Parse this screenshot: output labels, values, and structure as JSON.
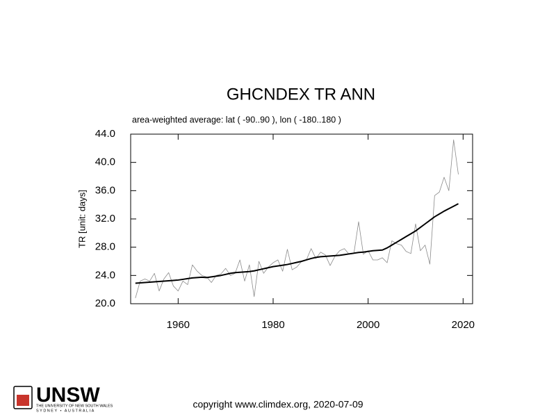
{
  "chart_data": {
    "type": "line",
    "title": "GHCNDEX TR ANN",
    "subtitle": "area-weighted average: lat ( -90..90 ), lon ( -180..180 )",
    "y_label": "TR [unit: days]",
    "x": [
      1951,
      1952,
      1953,
      1954,
      1955,
      1956,
      1957,
      1958,
      1959,
      1960,
      1961,
      1962,
      1963,
      1964,
      1965,
      1966,
      1967,
      1968,
      1969,
      1970,
      1971,
      1972,
      1973,
      1974,
      1975,
      1976,
      1977,
      1978,
      1979,
      1980,
      1981,
      1982,
      1983,
      1984,
      1985,
      1986,
      1987,
      1988,
      1989,
      1990,
      1991,
      1992,
      1993,
      1994,
      1995,
      1996,
      1997,
      1998,
      1999,
      2000,
      2001,
      2002,
      2003,
      2004,
      2005,
      2006,
      2007,
      2008,
      2009,
      2010,
      2011,
      2012,
      2013,
      2014,
      2015,
      2016,
      2017,
      2018,
      2019
    ],
    "series": [
      {
        "color": "#8a8a8a",
        "width": 0.8,
        "values": [
          20.8,
          23.2,
          23.5,
          23.2,
          24.3,
          21.8,
          23.5,
          24.4,
          22.5,
          21.8,
          23.2,
          22.7,
          25.5,
          24.6,
          24.0,
          23.8,
          23.0,
          24.0,
          24.2,
          25.0,
          24.0,
          24.3,
          26.2,
          23.2,
          25.5,
          21.0,
          26.0,
          24.3,
          25.2,
          25.8,
          26.2,
          24.6,
          27.7,
          24.8,
          25.2,
          26.0,
          26.2,
          27.8,
          26.4,
          27.3,
          26.9,
          25.4,
          26.7,
          27.5,
          27.8,
          27.0,
          27.1,
          31.6,
          27.0,
          27.5,
          26.2,
          26.2,
          26.5,
          25.8,
          28.9,
          28.5,
          28.3,
          27.4,
          27.1,
          31.3,
          27.5,
          28.3,
          25.6,
          35.3,
          35.8,
          37.9,
          36.0,
          43.2,
          38.3
        ]
      },
      {
        "color": "#000000",
        "width": 2,
        "values": [
          22.9,
          22.95,
          23.0,
          23.05,
          23.1,
          23.15,
          23.2,
          23.25,
          23.3,
          23.35,
          23.45,
          23.55,
          23.65,
          23.7,
          23.75,
          23.7,
          23.8,
          23.9,
          24.0,
          24.15,
          24.3,
          24.4,
          24.45,
          24.5,
          24.55,
          24.65,
          24.8,
          24.95,
          25.1,
          25.25,
          25.35,
          25.45,
          25.55,
          25.7,
          25.85,
          26.0,
          26.2,
          26.4,
          26.55,
          26.65,
          26.7,
          26.75,
          26.8,
          26.85,
          26.95,
          27.05,
          27.15,
          27.25,
          27.3,
          27.4,
          27.5,
          27.55,
          27.6,
          27.9,
          28.3,
          28.7,
          29.1,
          29.5,
          29.9,
          30.3,
          30.8,
          31.3,
          31.8,
          32.3,
          32.7,
          33.1,
          33.45,
          33.8,
          34.15
        ]
      }
    ],
    "xlim": [
      1950,
      2022
    ],
    "xticks": [
      1960,
      1980,
      2000,
      2020
    ],
    "ylim": [
      20,
      44
    ],
    "yticks": [
      {
        "value": 20,
        "label": "20.0"
      },
      {
        "value": 24,
        "label": "24.0"
      },
      {
        "value": 28,
        "label": "28.0"
      },
      {
        "value": 32,
        "label": "32.0"
      },
      {
        "value": 36,
        "label": "36.0"
      },
      {
        "value": 40,
        "label": "40.0"
      },
      {
        "value": 44,
        "label": "44.0"
      }
    ],
    "grid": false
  },
  "footer": {
    "copyright": "copyright www.climdex.org, 2020-07-09",
    "logo_name": "UNSW",
    "logo_line1": "THE UNIVERSITY OF NEW SOUTH WALES",
    "logo_line2": "SYDNEY • AUSTRALIA"
  }
}
